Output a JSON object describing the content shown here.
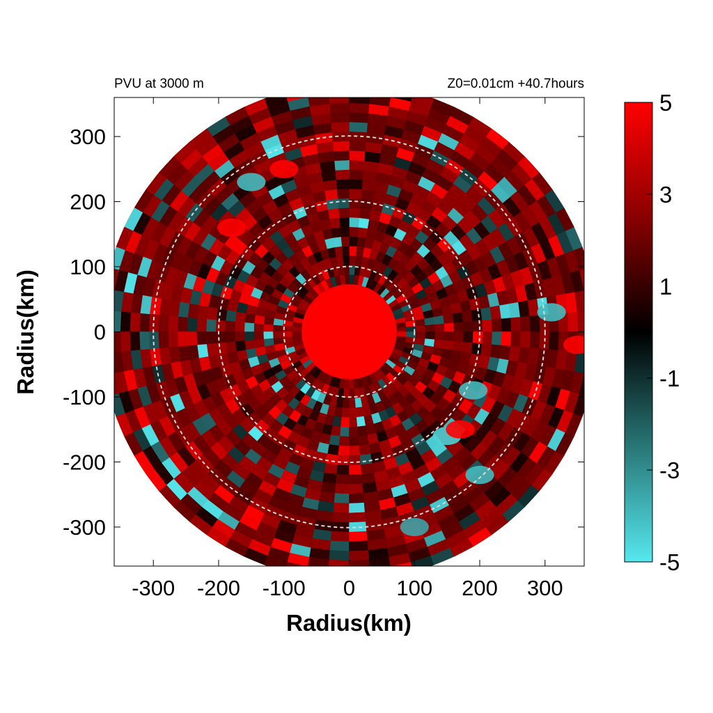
{
  "chart_data": {
    "type": "heatmap",
    "title_left": "PVU at  3000 m",
    "title_right": "Z0=0.01cm  +40.7hours",
    "xlabel": "Radius(km)",
    "ylabel": "Radius(km)",
    "xlim": [
      -360,
      360
    ],
    "ylim": [
      -360,
      360
    ],
    "xticks": [
      -300,
      -200,
      -100,
      0,
      100,
      200,
      300
    ],
    "yticks": [
      -300,
      -200,
      -100,
      0,
      100,
      200,
      300
    ],
    "domain_radius_km": 380,
    "reference_circles_km": [
      100,
      200,
      300
    ],
    "colorbar": {
      "min": -5,
      "max": 5,
      "ticks": [
        5,
        3,
        1,
        -1,
        -3,
        -5
      ],
      "colors": {
        "low": "#55e8ee",
        "mid": "#000000",
        "high": "#ff0000"
      }
    },
    "field_description_regions": [
      {
        "region": "core",
        "radius_range_km": [
          0,
          70
        ],
        "value": 5
      },
      {
        "region": "background",
        "radius_range_km": [
          70,
          380
        ],
        "value": 1.5
      },
      {
        "region": "negative_patch",
        "center_km": [
          190,
          -90
        ],
        "value": -4
      },
      {
        "region": "negative_patch",
        "center_km": [
          150,
          -160
        ],
        "value": -4.5
      },
      {
        "region": "negative_patch",
        "center_km": [
          -150,
          230
        ],
        "value": -4
      },
      {
        "region": "negative_patch",
        "center_km": [
          310,
          30
        ],
        "value": -4
      },
      {
        "region": "negative_patch",
        "center_km": [
          200,
          -220
        ],
        "value": -4
      },
      {
        "region": "negative_patch",
        "center_km": [
          100,
          -300
        ],
        "value": -3.5
      },
      {
        "region": "positive_patch",
        "center_km": [
          -180,
          160
        ],
        "value": 5
      },
      {
        "region": "positive_patch",
        "center_km": [
          170,
          -150
        ],
        "value": 5
      },
      {
        "region": "positive_patch",
        "center_km": [
          -100,
          250
        ],
        "value": 5
      },
      {
        "region": "positive_patch",
        "center_km": [
          350,
          -20
        ],
        "value": 5
      }
    ]
  }
}
